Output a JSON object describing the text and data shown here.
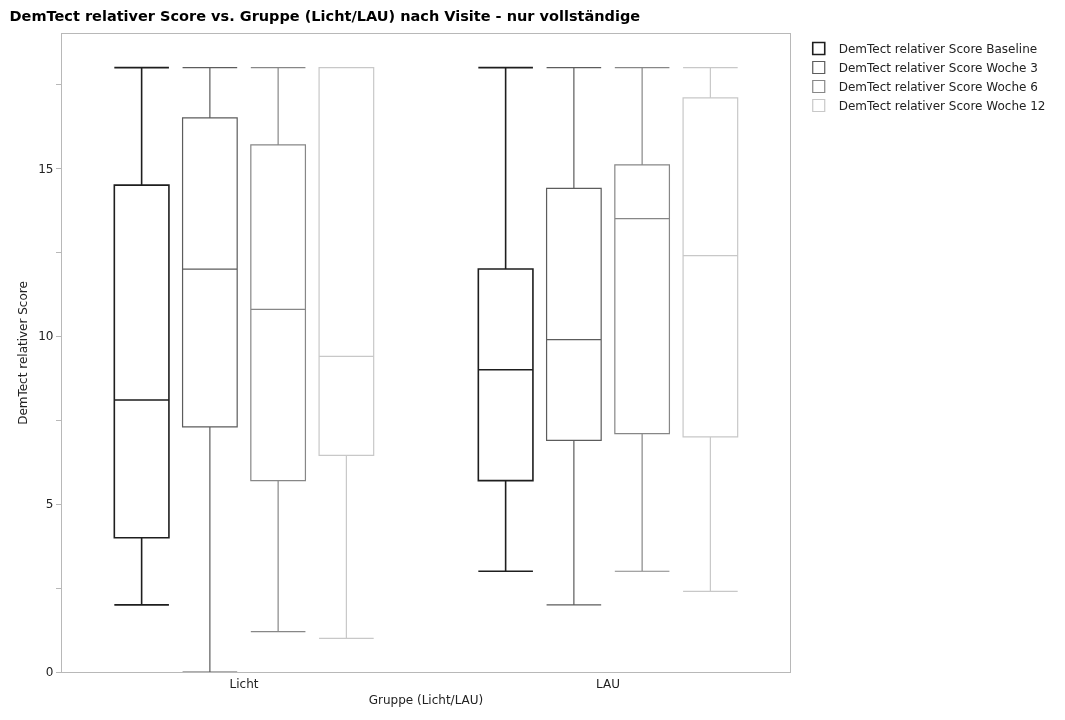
{
  "chart_data": {
    "type": "box",
    "title": "DemTect relativer Score vs. Gruppe (Licht/LAU) nach Visite - nur vollständige",
    "xlabel": "Gruppe (Licht/LAU)",
    "ylabel": "DemTect relativer Score",
    "categories": [
      "Licht",
      "LAU"
    ],
    "series": [
      {
        "name": "DemTect relativer Score Baseline",
        "color": "#1e1e1e",
        "boxes": [
          {
            "low": 2,
            "q1": 4,
            "median": 8.1,
            "q3": 14.5,
            "high": 18
          },
          {
            "low": 3,
            "q1": 5.7,
            "median": 9,
            "q3": 12,
            "high": 18
          }
        ]
      },
      {
        "name": "DemTect relativer Score Woche 3",
        "color": "#5c5c5c",
        "boxes": [
          {
            "low": 0,
            "q1": 7.3,
            "median": 12,
            "q3": 16.5,
            "high": 18
          },
          {
            "low": 2,
            "q1": 6.9,
            "median": 9.9,
            "q3": 14.4,
            "high": 18
          }
        ]
      },
      {
        "name": "DemTect relativer Score Woche 6",
        "color": "#878787",
        "boxes": [
          {
            "low": 1.2,
            "q1": 5.7,
            "median": 10.8,
            "q3": 15.7,
            "high": 18
          },
          {
            "low": 3,
            "q1": 7.1,
            "median": 13.5,
            "q3": 15.1,
            "high": 18
          }
        ]
      },
      {
        "name": "DemTect relativer Score Woche 12",
        "color": "#c8c8c8",
        "boxes": [
          {
            "low": 1,
            "q1": 6.45,
            "median": 9.4,
            "q3": 18,
            "high": 18
          },
          {
            "low": 2.4,
            "q1": 7,
            "median": 12.4,
            "q3": 17.1,
            "high": 18
          }
        ]
      }
    ],
    "ylim": [
      0,
      19
    ],
    "yticks": [
      0,
      {
        "value": 2.5,
        "label": null
      },
      5,
      {
        "value": 7.5,
        "label": null
      },
      10,
      {
        "value": 12.5,
        "label": null
      },
      15,
      {
        "value": 17.5,
        "label": null
      }
    ],
    "legend": "top right"
  }
}
